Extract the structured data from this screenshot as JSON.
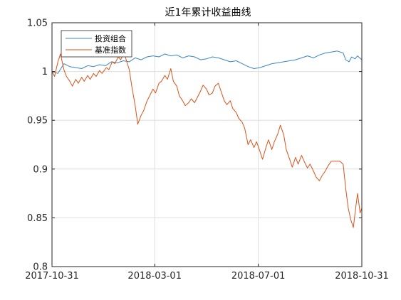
{
  "chart_data": {
    "type": "line",
    "title": "近1年累计收益曲线",
    "xlabel": "",
    "ylabel": "",
    "x_range": [
      "2017-10-31",
      "2018-10-31"
    ],
    "x_ticks": [
      "2017-10-31",
      "2018-03-01",
      "2018-07-01",
      "2018-10-31"
    ],
    "ylim": [
      0.8,
      1.05
    ],
    "y_ticks": [
      0.8,
      0.85,
      0.9,
      0.95,
      1,
      1.05
    ],
    "y_tick_labels": [
      "0.8",
      "0.85",
      "0.9",
      "0.95",
      "1",
      "1.05"
    ],
    "grid": true,
    "legend": "top-left",
    "series": [
      {
        "name": "投资组合",
        "color": "#3a86c8",
        "points": [
          [
            "2017-10-31",
            1.0
          ],
          [
            "2017-11-07",
            0.998
          ],
          [
            "2017-11-14",
            1.008
          ],
          [
            "2017-11-21",
            1.005
          ],
          [
            "2017-11-28",
            1.004
          ],
          [
            "2017-12-05",
            1.003
          ],
          [
            "2017-12-12",
            1.006
          ],
          [
            "2017-12-19",
            1.005
          ],
          [
            "2017-12-26",
            1.007
          ],
          [
            "2018-01-02",
            1.006
          ],
          [
            "2018-01-09",
            1.01
          ],
          [
            "2018-01-16",
            1.009
          ],
          [
            "2018-01-23",
            1.011
          ],
          [
            "2018-01-30",
            1.01
          ],
          [
            "2018-02-06",
            1.014
          ],
          [
            "2018-02-13",
            1.012
          ],
          [
            "2018-02-20",
            1.015
          ],
          [
            "2018-02-27",
            1.016
          ],
          [
            "2018-03-06",
            1.015
          ],
          [
            "2018-03-13",
            1.018
          ],
          [
            "2018-03-20",
            1.016
          ],
          [
            "2018-03-27",
            1.017
          ],
          [
            "2018-04-03",
            1.014
          ],
          [
            "2018-04-10",
            1.016
          ],
          [
            "2018-04-17",
            1.015
          ],
          [
            "2018-04-24",
            1.012
          ],
          [
            "2018-05-01",
            1.013
          ],
          [
            "2018-05-08",
            1.015
          ],
          [
            "2018-05-15",
            1.014
          ],
          [
            "2018-05-22",
            1.012
          ],
          [
            "2018-05-29",
            1.01
          ],
          [
            "2018-06-05",
            1.011
          ],
          [
            "2018-06-12",
            1.008
          ],
          [
            "2018-06-19",
            1.005
          ],
          [
            "2018-06-26",
            1.003
          ],
          [
            "2018-07-03",
            1.004
          ],
          [
            "2018-07-10",
            1.006
          ],
          [
            "2018-07-17",
            1.008
          ],
          [
            "2018-07-24",
            1.009
          ],
          [
            "2018-07-31",
            1.01
          ],
          [
            "2018-08-07",
            1.011
          ],
          [
            "2018-08-14",
            1.012
          ],
          [
            "2018-08-21",
            1.014
          ],
          [
            "2018-08-28",
            1.016
          ],
          [
            "2018-09-04",
            1.014
          ],
          [
            "2018-09-11",
            1.017
          ],
          [
            "2018-09-18",
            1.019
          ],
          [
            "2018-09-25",
            1.02
          ],
          [
            "2018-10-02",
            1.021
          ],
          [
            "2018-10-09",
            1.019
          ],
          [
            "2018-10-12",
            1.012
          ],
          [
            "2018-10-16",
            1.01
          ],
          [
            "2018-10-19",
            1.015
          ],
          [
            "2018-10-23",
            1.013
          ],
          [
            "2018-10-26",
            1.016
          ],
          [
            "2018-10-31",
            1.012
          ]
        ]
      },
      {
        "name": "基准指数",
        "color": "#d95319",
        "points": [
          [
            "2017-10-31",
            1.0
          ],
          [
            "2017-11-03",
            0.995
          ],
          [
            "2017-11-07",
            1.01
          ],
          [
            "2017-11-10",
            1.018
          ],
          [
            "2017-11-14",
            1.002
          ],
          [
            "2017-11-17",
            0.995
          ],
          [
            "2017-11-21",
            0.99
          ],
          [
            "2017-11-24",
            0.985
          ],
          [
            "2017-11-28",
            0.992
          ],
          [
            "2017-12-01",
            0.988
          ],
          [
            "2017-12-05",
            0.994
          ],
          [
            "2017-12-08",
            0.99
          ],
          [
            "2017-12-12",
            0.996
          ],
          [
            "2017-12-15",
            0.992
          ],
          [
            "2017-12-19",
            0.998
          ],
          [
            "2017-12-22",
            0.995
          ],
          [
            "2017-12-26",
            1.001
          ],
          [
            "2017-12-29",
            0.998
          ],
          [
            "2018-01-03",
            1.004
          ],
          [
            "2018-01-06",
            1.002
          ],
          [
            "2018-01-10",
            1.01
          ],
          [
            "2018-01-13",
            1.008
          ],
          [
            "2018-01-17",
            1.015
          ],
          [
            "2018-01-20",
            1.012
          ],
          [
            "2018-01-24",
            1.02
          ],
          [
            "2018-01-27",
            1.01
          ],
          [
            "2018-01-30",
            1.002
          ],
          [
            "2018-02-02",
            0.985
          ],
          [
            "2018-02-06",
            0.965
          ],
          [
            "2018-02-09",
            0.946
          ],
          [
            "2018-02-13",
            0.955
          ],
          [
            "2018-02-16",
            0.96
          ],
          [
            "2018-02-20",
            0.97
          ],
          [
            "2018-02-23",
            0.975
          ],
          [
            "2018-02-27",
            0.982
          ],
          [
            "2018-03-02",
            0.978
          ],
          [
            "2018-03-06",
            0.988
          ],
          [
            "2018-03-09",
            0.99
          ],
          [
            "2018-03-13",
            0.996
          ],
          [
            "2018-03-16",
            0.992
          ],
          [
            "2018-03-20",
            1.003
          ],
          [
            "2018-03-23",
            0.99
          ],
          [
            "2018-03-27",
            0.985
          ],
          [
            "2018-03-30",
            0.975
          ],
          [
            "2018-04-03",
            0.97
          ],
          [
            "2018-04-06",
            0.965
          ],
          [
            "2018-04-10",
            0.968
          ],
          [
            "2018-04-13",
            0.972
          ],
          [
            "2018-04-17",
            0.968
          ],
          [
            "2018-04-20",
            0.973
          ],
          [
            "2018-04-24",
            0.98
          ],
          [
            "2018-04-27",
            0.986
          ],
          [
            "2018-05-01",
            0.982
          ],
          [
            "2018-05-04",
            0.976
          ],
          [
            "2018-05-08",
            0.978
          ],
          [
            "2018-05-11",
            0.985
          ],
          [
            "2018-05-15",
            0.988
          ],
          [
            "2018-05-18",
            0.98
          ],
          [
            "2018-05-22",
            0.97
          ],
          [
            "2018-05-25",
            0.966
          ],
          [
            "2018-05-29",
            0.97
          ],
          [
            "2018-06-01",
            0.962
          ],
          [
            "2018-06-05",
            0.958
          ],
          [
            "2018-06-08",
            0.952
          ],
          [
            "2018-06-12",
            0.948
          ],
          [
            "2018-06-15",
            0.942
          ],
          [
            "2018-06-19",
            0.925
          ],
          [
            "2018-06-22",
            0.93
          ],
          [
            "2018-06-26",
            0.922
          ],
          [
            "2018-06-29",
            0.928
          ],
          [
            "2018-07-03",
            0.918
          ],
          [
            "2018-07-06",
            0.91
          ],
          [
            "2018-07-10",
            0.922
          ],
          [
            "2018-07-13",
            0.93
          ],
          [
            "2018-07-17",
            0.92
          ],
          [
            "2018-07-20",
            0.928
          ],
          [
            "2018-07-24",
            0.936
          ],
          [
            "2018-07-27",
            0.945
          ],
          [
            "2018-07-31",
            0.935
          ],
          [
            "2018-08-03",
            0.92
          ],
          [
            "2018-08-07",
            0.91
          ],
          [
            "2018-08-10",
            0.902
          ],
          [
            "2018-08-14",
            0.912
          ],
          [
            "2018-08-17",
            0.905
          ],
          [
            "2018-08-21",
            0.914
          ],
          [
            "2018-08-24",
            0.908
          ],
          [
            "2018-08-28",
            0.901
          ],
          [
            "2018-08-31",
            0.905
          ],
          [
            "2018-09-04",
            0.898
          ],
          [
            "2018-09-07",
            0.892
          ],
          [
            "2018-09-11",
            0.888
          ],
          [
            "2018-09-14",
            0.893
          ],
          [
            "2018-09-18",
            0.898
          ],
          [
            "2018-09-21",
            0.903
          ],
          [
            "2018-09-25",
            0.908
          ],
          [
            "2018-09-28",
            0.908
          ],
          [
            "2018-10-02",
            0.908
          ],
          [
            "2018-10-05",
            0.908
          ],
          [
            "2018-10-09",
            0.905
          ],
          [
            "2018-10-12",
            0.88
          ],
          [
            "2018-10-15",
            0.86
          ],
          [
            "2018-10-18",
            0.848
          ],
          [
            "2018-10-21",
            0.84
          ],
          [
            "2018-10-24",
            0.862
          ],
          [
            "2018-10-26",
            0.875
          ],
          [
            "2018-10-29",
            0.855
          ],
          [
            "2018-10-31",
            0.86
          ]
        ]
      }
    ]
  }
}
